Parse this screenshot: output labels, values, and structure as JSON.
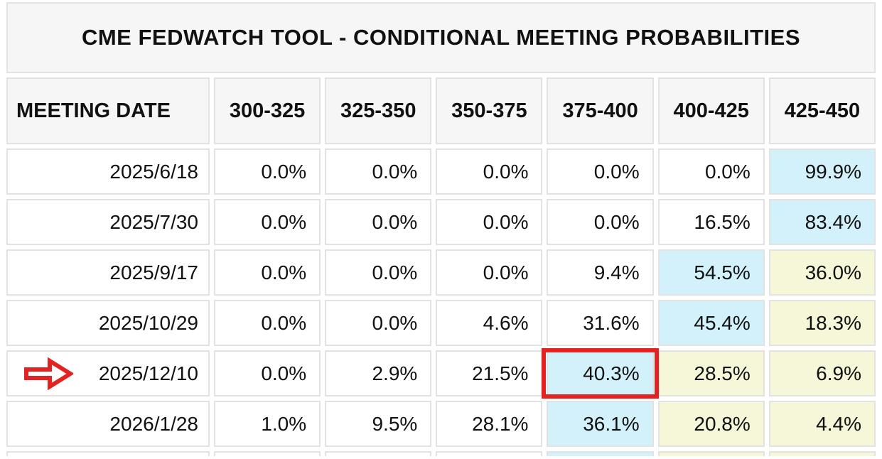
{
  "chart_data": {
    "type": "table",
    "title": "CME FEDWATCH TOOL - CONDITIONAL MEETING PROBABILITIES",
    "columns": [
      "MEETING DATE",
      "300-325",
      "325-350",
      "350-375",
      "375-400",
      "400-425",
      "425-450"
    ],
    "rows": [
      {
        "date": "2025/6/18",
        "values": [
          "0.0%",
          "0.0%",
          "0.0%",
          "0.0%",
          "0.0%",
          "99.9%"
        ],
        "highlights": [
          "",
          "",
          "",
          "",
          "",
          "blue"
        ],
        "arrow": false
      },
      {
        "date": "2025/7/30",
        "values": [
          "0.0%",
          "0.0%",
          "0.0%",
          "0.0%",
          "16.5%",
          "83.4%"
        ],
        "highlights": [
          "",
          "",
          "",
          "",
          "",
          "blue"
        ],
        "arrow": false
      },
      {
        "date": "2025/9/17",
        "values": [
          "0.0%",
          "0.0%",
          "0.0%",
          "9.4%",
          "54.5%",
          "36.0%"
        ],
        "highlights": [
          "",
          "",
          "",
          "",
          "blue",
          "yellow"
        ],
        "arrow": false
      },
      {
        "date": "2025/10/29",
        "values": [
          "0.0%",
          "0.0%",
          "4.6%",
          "31.6%",
          "45.4%",
          "18.3%"
        ],
        "highlights": [
          "",
          "",
          "",
          "",
          "blue",
          "yellow"
        ],
        "arrow": false
      },
      {
        "date": "2025/12/10",
        "values": [
          "0.0%",
          "2.9%",
          "21.5%",
          "40.3%",
          "28.5%",
          "6.9%"
        ],
        "highlights": [
          "",
          "",
          "",
          "blue",
          "yellow",
          "yellow"
        ],
        "arrow": true,
        "red_box_col": 3
      },
      {
        "date": "2026/1/28",
        "values": [
          "1.0%",
          "9.5%",
          "28.1%",
          "36.1%",
          "20.8%",
          "4.4%"
        ],
        "highlights": [
          "",
          "",
          "",
          "blue",
          "yellow",
          "yellow"
        ],
        "arrow": false
      }
    ],
    "cutoff_row_highlights": [
      "",
      "",
      "",
      "",
      "blue",
      "yellow",
      "yellow"
    ],
    "annotations": {
      "arrow_row": "2025/12/10",
      "boxed_cell": {
        "row": "2025/12/10",
        "column": "375-400",
        "value": "40.3%"
      }
    },
    "layout_hints": {
      "highlight_blue_meaning": "highest probability in row",
      "highlight_yellow_meaning": "secondary probability",
      "grid": "on",
      "value_alignment": "right"
    }
  },
  "colors": {
    "blue": "#d3f1fa",
    "yellow": "#f6f6d9",
    "red": "#e22322",
    "border": "#e2e2e2",
    "panel": "#f6f6f6",
    "text": "#111111"
  },
  "icons": {
    "arrow": "red-right-arrow-icon"
  }
}
